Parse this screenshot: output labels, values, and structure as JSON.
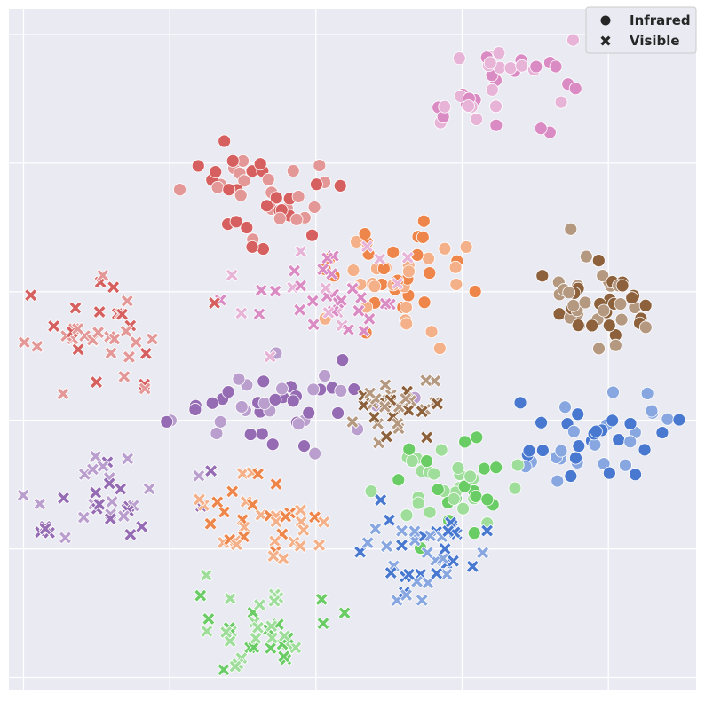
{
  "chart_data": {
    "type": "scatter",
    "title": "",
    "xlabel": "",
    "ylabel": "",
    "xlim": [
      -0.1,
      4.6
    ],
    "ylim": [
      -0.1,
      5.2
    ],
    "x_gridlines": [
      0,
      1,
      2,
      3,
      4
    ],
    "y_gridlines": [
      0,
      1,
      2,
      3,
      4,
      5
    ],
    "grid": true,
    "tick_labels_visible": false,
    "legend": {
      "position": "top-right",
      "entries": [
        {
          "label": "Infrared",
          "marker": "circle"
        },
        {
          "label": "Visible",
          "marker": "x"
        }
      ]
    },
    "colors": {
      "pink": "#da8bc3",
      "red": "#d65f5f",
      "orange": "#ee854a",
      "brown": "#8c613c",
      "purple": "#956cb4",
      "blue": "#4878d0",
      "green": "#6acc64"
    },
    "clusters": [
      {
        "marker": "circle",
        "color": "pink",
        "center": [
          3.25,
          4.6
        ],
        "spread": [
          0.22,
          0.18
        ],
        "n": 40,
        "seed": 11
      },
      {
        "marker": "circle",
        "color": "red",
        "center": [
          1.6,
          3.7
        ],
        "spread": [
          0.2,
          0.24
        ],
        "n": 45,
        "seed": 12
      },
      {
        "marker": "circle",
        "color": "orange",
        "center": [
          2.55,
          3.08
        ],
        "spread": [
          0.3,
          0.2
        ],
        "n": 48,
        "seed": 13
      },
      {
        "marker": "circle",
        "color": "brown",
        "center": [
          3.95,
          2.98
        ],
        "spread": [
          0.18,
          0.18
        ],
        "n": 48,
        "seed": 14
      },
      {
        "marker": "circle",
        "color": "purple",
        "center": [
          1.75,
          2.1
        ],
        "spread": [
          0.36,
          0.18
        ],
        "n": 45,
        "seed": 15
      },
      {
        "marker": "circle",
        "color": "blue",
        "center": [
          3.95,
          1.85
        ],
        "spread": [
          0.3,
          0.2
        ],
        "n": 42,
        "seed": 16
      },
      {
        "marker": "circle",
        "color": "green",
        "center": [
          2.9,
          1.45
        ],
        "spread": [
          0.25,
          0.16
        ],
        "n": 44,
        "seed": 17
      },
      {
        "marker": "x",
        "color": "pink",
        "center": [
          2.15,
          3.0
        ],
        "spread": [
          0.26,
          0.18
        ],
        "n": 40,
        "seed": 21
      },
      {
        "marker": "x",
        "color": "red",
        "center": [
          0.45,
          2.65
        ],
        "spread": [
          0.3,
          0.2
        ],
        "n": 40,
        "seed": 22
      },
      {
        "marker": "x",
        "color": "brown",
        "center": [
          2.6,
          2.08
        ],
        "spread": [
          0.16,
          0.1
        ],
        "n": 34,
        "seed": 23
      },
      {
        "marker": "x",
        "color": "purple",
        "center": [
          0.6,
          1.38
        ],
        "spread": [
          0.3,
          0.16
        ],
        "n": 36,
        "seed": 24
      },
      {
        "marker": "x",
        "color": "orange",
        "center": [
          1.6,
          1.25
        ],
        "spread": [
          0.2,
          0.18
        ],
        "n": 38,
        "seed": 25
      },
      {
        "marker": "x",
        "color": "blue",
        "center": [
          2.75,
          1.0
        ],
        "spread": [
          0.2,
          0.2
        ],
        "n": 44,
        "seed": 26
      },
      {
        "marker": "x",
        "color": "green",
        "center": [
          1.6,
          0.4
        ],
        "spread": [
          0.22,
          0.22
        ],
        "n": 40,
        "seed": 27
      }
    ]
  }
}
